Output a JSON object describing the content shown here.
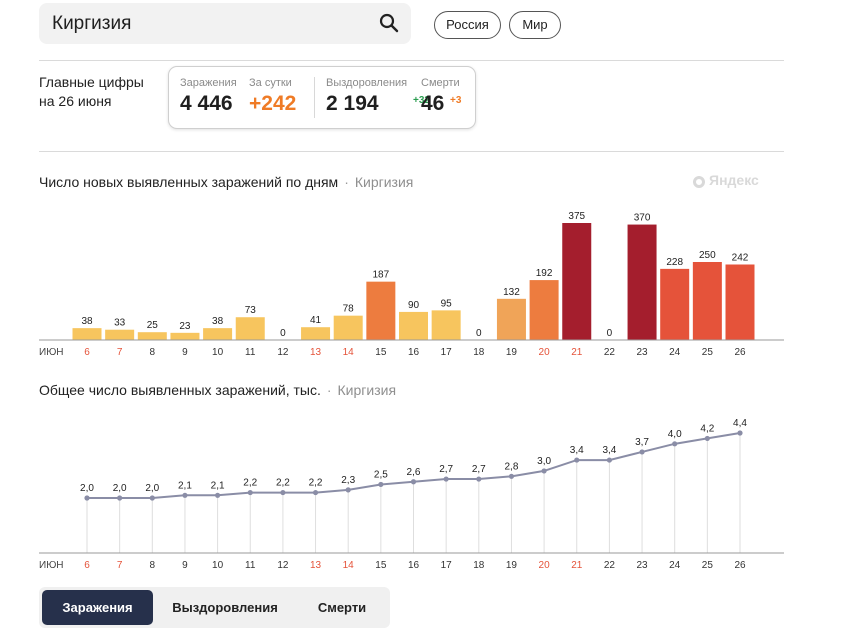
{
  "search": {
    "value": "Киргизия"
  },
  "region_buttons": [
    "Россия",
    "Мир"
  ],
  "summary": {
    "label_line1": "Главные цифры",
    "label_line2": "на 26 июня",
    "infected_label": "Заражения",
    "infected_value": "4 446",
    "daily_label": "За сутки",
    "daily_value": "+242",
    "recovered_label": "Выздоровления",
    "recovered_value": "2 194",
    "recovered_delta": "+32",
    "deaths_label": "Смерти",
    "deaths_value": "46",
    "deaths_delta": "+3"
  },
  "watermark": "Яндекс",
  "tabs": [
    "Заражения",
    "Выздоровления",
    "Смерти"
  ],
  "colors": {
    "bar_light": "#f7c55e",
    "bar_mid": "#f0a458",
    "bar_orange": "#ed7c3f",
    "bar_red": "#e5533a",
    "bar_dark": "#a41e2d",
    "line": "#8a8da6",
    "weekend_tick": "#e5533a",
    "delta_green": "#2a9d4f",
    "delta_orange": "#ef7b26"
  },
  "chart_data": [
    {
      "type": "bar",
      "title": "Число новых выявленных заражений по дням",
      "region": "Киргизия",
      "month_label": "ИЮН",
      "categories": [
        "6",
        "7",
        "8",
        "9",
        "10",
        "11",
        "12",
        "13",
        "14",
        "15",
        "16",
        "17",
        "18",
        "19",
        "20",
        "21",
        "22",
        "23",
        "24",
        "25",
        "26"
      ],
      "values": [
        38,
        33,
        25,
        23,
        38,
        73,
        0,
        41,
        78,
        187,
        90,
        95,
        0,
        132,
        192,
        375,
        0,
        370,
        228,
        250,
        242
      ],
      "value_labels": [
        "38",
        "33",
        "25",
        "23",
        "38",
        "73",
        "0",
        "41",
        "78",
        "187",
        "90",
        "95",
        "0",
        "132",
        "192",
        "375",
        "0",
        "370",
        "228",
        "250",
        "242"
      ],
      "weekend_categories": [
        "6",
        "7",
        "13",
        "14",
        "20",
        "21"
      ],
      "ylim": [
        0,
        375
      ]
    },
    {
      "type": "line",
      "title": "Общее число выявленных заражений, тыс.",
      "region": "Киргизия",
      "month_label": "ИЮН",
      "categories": [
        "6",
        "7",
        "8",
        "9",
        "10",
        "11",
        "12",
        "13",
        "14",
        "15",
        "16",
        "17",
        "18",
        "19",
        "20",
        "21",
        "22",
        "23",
        "24",
        "25",
        "26"
      ],
      "values": [
        2.0,
        2.0,
        2.0,
        2.1,
        2.1,
        2.2,
        2.2,
        2.2,
        2.3,
        2.5,
        2.6,
        2.7,
        2.7,
        2.8,
        3.0,
        3.4,
        3.4,
        3.7,
        4.0,
        4.2,
        4.4
      ],
      "value_labels": [
        "2,0",
        "2,0",
        "2,0",
        "2,1",
        "2,1",
        "2,2",
        "2,2",
        "2,2",
        "2,3",
        "2,5",
        "2,6",
        "2,7",
        "2,7",
        "2,8",
        "3,0",
        "3,4",
        "3,4",
        "3,7",
        "4,0",
        "4,2",
        "4,4"
      ],
      "weekend_categories": [
        "6",
        "7",
        "13",
        "14",
        "20",
        "21"
      ],
      "ylim": [
        2.0,
        4.4
      ]
    }
  ]
}
